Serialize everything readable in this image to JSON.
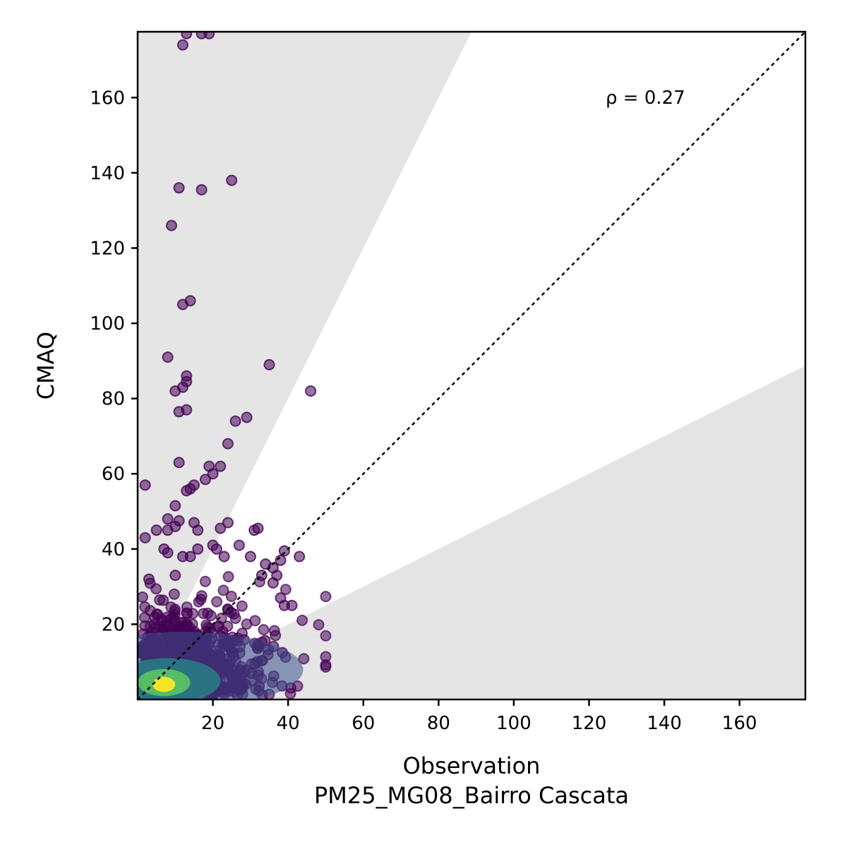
{
  "chart_data": {
    "type": "scatter",
    "xlabel": "Observation",
    "xlabel_sub": "PM25_MG08_Bairro Cascata",
    "ylabel": "CMAQ",
    "annotation": "ρ = 0.27",
    "xlim": [
      0,
      177.5
    ],
    "ylim": [
      0,
      177.5
    ],
    "xticks": [
      20,
      40,
      60,
      80,
      100,
      120,
      140,
      160
    ],
    "yticks": [
      20,
      40,
      60,
      80,
      100,
      120,
      140,
      160
    ],
    "grid": false,
    "reference_line": {
      "slope": 1,
      "style": "dotted",
      "color": "#000000"
    },
    "shaded_region": {
      "upper_slope": 2,
      "lower_slope": 0.5,
      "outside_color": "#e5e5e5"
    },
    "colormap": [
      "#440154",
      "#3b528b",
      "#21918c",
      "#5ec962",
      "#fde725"
    ],
    "points_outliers": [
      [
        12,
        174
      ],
      [
        13,
        177
      ],
      [
        17,
        177
      ],
      [
        19,
        177
      ],
      [
        11,
        136
      ],
      [
        17,
        135.5
      ],
      [
        25,
        138
      ],
      [
        9,
        126
      ],
      [
        12,
        105
      ],
      [
        14,
        106
      ],
      [
        8,
        91
      ],
      [
        13,
        86
      ],
      [
        13,
        84.5
      ],
      [
        12,
        83
      ],
      [
        10,
        82
      ],
      [
        35,
        89
      ],
      [
        46,
        82
      ],
      [
        11,
        76.5
      ],
      [
        13,
        77
      ],
      [
        26,
        74
      ],
      [
        29,
        75
      ],
      [
        24,
        68
      ],
      [
        11,
        63
      ],
      [
        19,
        62
      ],
      [
        22,
        62
      ],
      [
        20,
        60
      ],
      [
        18,
        58.5
      ],
      [
        2,
        57
      ],
      [
        13,
        55.5
      ],
      [
        14,
        56
      ],
      [
        15,
        57
      ],
      [
        10,
        51.5
      ],
      [
        8,
        48
      ],
      [
        11,
        47.5
      ],
      [
        15,
        47
      ],
      [
        24,
        47
      ],
      [
        16,
        45
      ],
      [
        22,
        45.5
      ],
      [
        10,
        46
      ],
      [
        8,
        45
      ],
      [
        5,
        45
      ],
      [
        2,
        43
      ],
      [
        31,
        45
      ],
      [
        32,
        45.5
      ],
      [
        39,
        39.5
      ],
      [
        43,
        38
      ],
      [
        36,
        35
      ],
      [
        38,
        37
      ],
      [
        34,
        36
      ],
      [
        37,
        33
      ],
      [
        38,
        27
      ],
      [
        39,
        25
      ],
      [
        41,
        25
      ],
      [
        36,
        31
      ],
      [
        33,
        33
      ],
      [
        30,
        38
      ],
      [
        27,
        41
      ],
      [
        23,
        38
      ],
      [
        20,
        41
      ],
      [
        21,
        40
      ],
      [
        14,
        38
      ],
      [
        12,
        38
      ],
      [
        16,
        40
      ],
      [
        7,
        40
      ],
      [
        8,
        39
      ],
      [
        10,
        33
      ],
      [
        3,
        32
      ]
    ]
  }
}
